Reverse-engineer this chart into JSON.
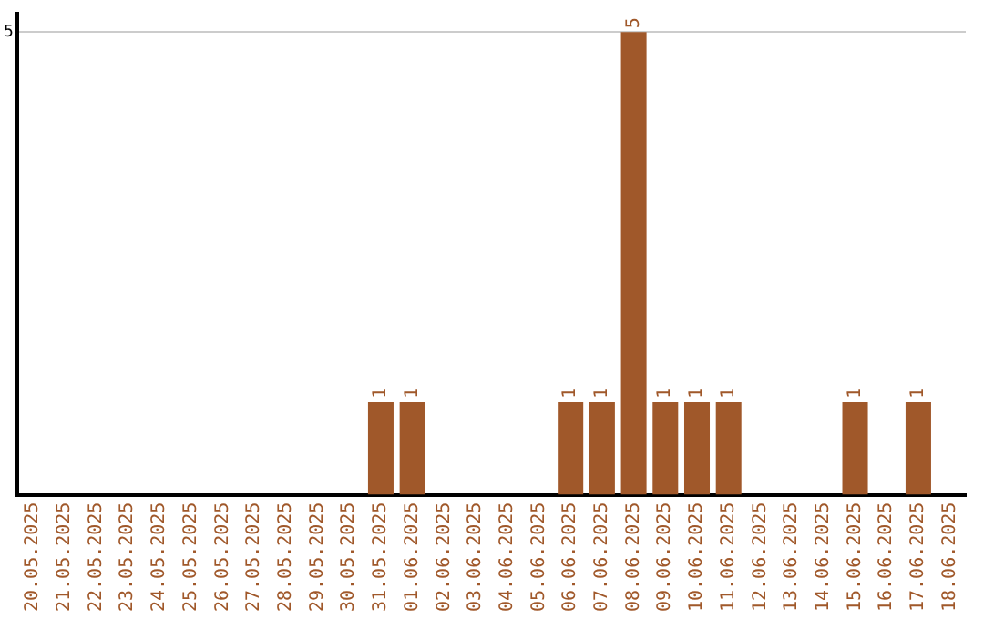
{
  "chart_data": {
    "type": "bar",
    "categories": [
      "20.05.2025",
      "21.05.2025",
      "22.05.2025",
      "23.05.2025",
      "24.05.2025",
      "25.05.2025",
      "26.05.2025",
      "27.05.2025",
      "28.05.2025",
      "29.05.2025",
      "30.05.2025",
      "31.05.2025",
      "01.06.2025",
      "02.06.2025",
      "03.06.2025",
      "04.06.2025",
      "05.06.2025",
      "06.06.2025",
      "07.06.2025",
      "08.06.2025",
      "09.06.2025",
      "10.06.2025",
      "11.06.2025",
      "12.06.2025",
      "13.06.2025",
      "14.06.2025",
      "15.06.2025",
      "16.06.2025",
      "17.06.2025",
      "18.06.2025"
    ],
    "values": [
      0,
      0,
      0,
      0,
      0,
      0,
      0,
      0,
      0,
      0,
      0,
      1,
      1,
      0,
      0,
      0,
      0,
      1,
      1,
      5,
      1,
      1,
      1,
      0,
      0,
      0,
      1,
      0,
      1,
      0
    ],
    "value_labels": [
      null,
      null,
      null,
      null,
      null,
      null,
      null,
      null,
      null,
      null,
      null,
      "1",
      "1",
      null,
      null,
      null,
      null,
      "1",
      "1",
      "5",
      "1",
      "1",
      "1",
      null,
      null,
      null,
      "1",
      null,
      "1",
      null
    ],
    "color": "#a0582a",
    "ylim": [
      0,
      5.2
    ],
    "yticks": [
      5
    ],
    "grid": "y",
    "legend": false
  }
}
